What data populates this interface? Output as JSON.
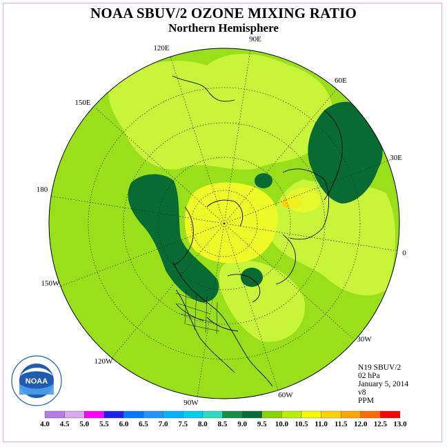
{
  "header": {
    "title": "NOAA SBUV/2 OZONE MIXING RATIO",
    "subtitle": "Northern Hemisphere"
  },
  "map": {
    "projection": "north-polar-stereographic",
    "longitude_labels": [
      "90E",
      "60E",
      "30E",
      "0",
      "30W",
      "60W",
      "90W",
      "120W",
      "150W",
      "180",
      "150E",
      "120E"
    ]
  },
  "info": {
    "satellite": "N19 SBUV/2",
    "level": "02 hPa",
    "date": "January 5, 2014",
    "version": "v8",
    "units": "PPM"
  },
  "legend": {
    "tick_labels": [
      "4.0",
      "4.5",
      "5.0",
      "5.5",
      "6.0",
      "6.5",
      "7.0",
      "7.5",
      "8.0",
      "8.5",
      "9.0",
      "9.5",
      "10.0",
      "10.5",
      "11.0",
      "11.5",
      "12.0",
      "12.5",
      "13.0"
    ],
    "colors": [
      "#b57be8",
      "#dba8f2",
      "#ff00ff",
      "#2020f0",
      "#0078ff",
      "#1e96ff",
      "#00b4ff",
      "#00cdf5",
      "#2bdcc0",
      "#12904a",
      "#006e36",
      "#88d400",
      "#b8f000",
      "#f4fa00",
      "#ffd200",
      "#ffa500",
      "#ff6a00",
      "#ff0000",
      "#a0522d"
    ]
  },
  "logo": {
    "text": "NOAA",
    "ring_text": "NATIONAL OCEANIC AND ATMOSPHERIC ADMINISTRATION · U.S. DEPARTMENT OF COMMERCE"
  },
  "colors": {
    "background_field": "#99e01a",
    "light_field": "#c8f53a",
    "yellow_field": "#f0fa28",
    "dark_green": "#086c32",
    "orange": "#ffd200",
    "noaa_blue": "#1f5bb0"
  }
}
